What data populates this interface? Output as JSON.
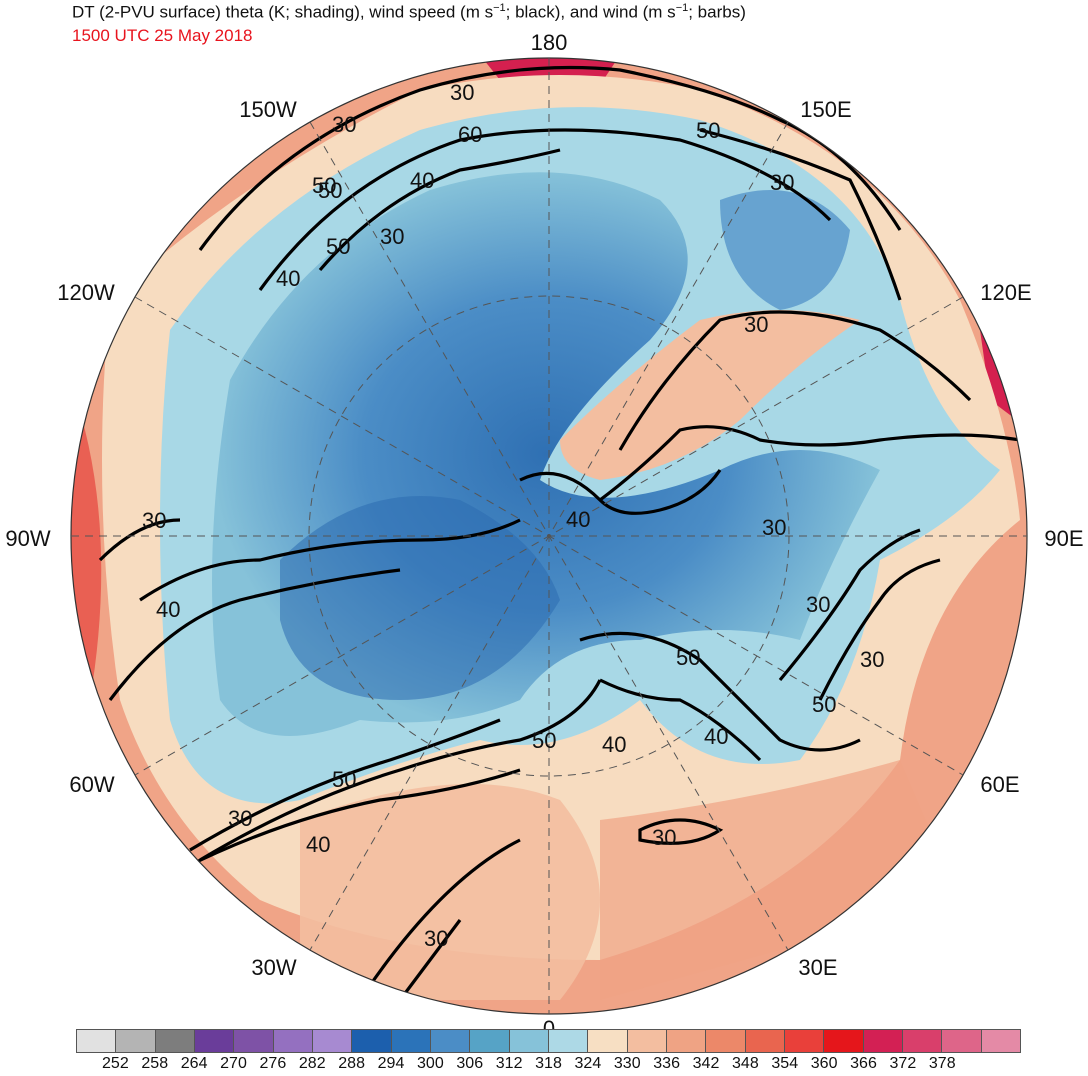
{
  "header": {
    "title_main": "DT (2-PVU surface) theta (K; shading), wind speed (m s",
    "title_exp1": "−1",
    "title_mid": "; black), and wind (m s",
    "title_exp2": "−1",
    "title_end": "; barbs)",
    "subtitle": "1500 UTC 25 May 2018"
  },
  "map": {
    "projection": "north-polar-stereographic",
    "longitude_labels": {
      "top": "180",
      "upper_left": "150W",
      "upper_right": "150E",
      "left_high": "120W",
      "right_high": "120E",
      "left_mid": "90W",
      "right_mid": "90E",
      "left_low": "60W",
      "right_low": "60E",
      "lower_left": "30W",
      "lower_right": "30E",
      "bottom": "0"
    },
    "contour_labels": [
      "30",
      "30",
      "60",
      "50",
      "50",
      "50",
      "40",
      "30",
      "40",
      "30",
      "40",
      "30",
      "30",
      "30",
      "40",
      "30",
      "30",
      "50",
      "40",
      "40",
      "50",
      "50",
      "30",
      "50",
      "30",
      "30",
      "30",
      "40",
      "50",
      "30",
      "40",
      "40"
    ],
    "colors": {
      "cold_deep": "#2b6cb0",
      "cold": "#5b9bd0",
      "cool": "#a8d8e6",
      "neutral": "#f7dcc0",
      "warm": "#f0a487",
      "hot": "#e8554a",
      "very_hot": "#d4204f"
    }
  },
  "colorbar": {
    "colors": [
      "#e1e1e1",
      "#b4b4b4",
      "#7d7d7d",
      "#6a3d9a",
      "#7e52a6",
      "#9470c0",
      "#a78ad1",
      "#1c5fad",
      "#2b73b9",
      "#4b8dc6",
      "#56a3c6",
      "#86c2d9",
      "#add9e6",
      "#f7dfc3",
      "#f3bea0",
      "#efa384",
      "#ec8869",
      "#e9654f",
      "#e9403a",
      "#e5161b",
      "#d32054",
      "#d93f6b",
      "#de6589",
      "#e48aa6"
    ],
    "tick_labels": [
      "252",
      "258",
      "264",
      "270",
      "276",
      "282",
      "288",
      "294",
      "300",
      "306",
      "312",
      "318",
      "324",
      "330",
      "336",
      "342",
      "348",
      "354",
      "360",
      "366",
      "372",
      "378"
    ]
  }
}
